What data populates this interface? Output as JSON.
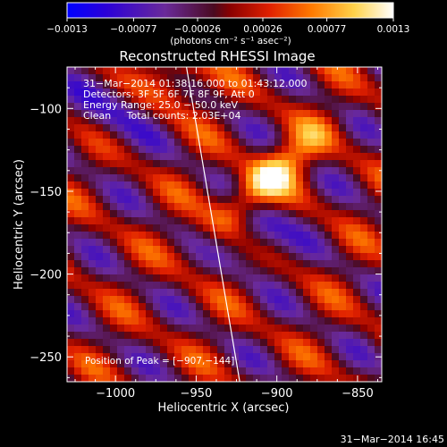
{
  "chart_data": {
    "type": "heatmap",
    "title": "Reconstructed RHESSI Image",
    "xlabel": "Heliocentric X (arcsec)",
    "ylabel": "Heliocentric Y (arcsec)",
    "xlim": [
      -1030,
      -835
    ],
    "ylim": [
      -265,
      -75
    ],
    "x_ticks": [
      -1000,
      -950,
      -900,
      -850
    ],
    "x_tick_labels": [
      "−1000",
      "−950",
      "−900",
      "−850"
    ],
    "y_ticks": [
      -100,
      -150,
      -200,
      -250
    ],
    "y_tick_labels": [
      "−100",
      "−150",
      "−200",
      "−250"
    ],
    "colorbar": {
      "colormap": "rainbow-to-hot",
      "range": [
        -0.0013,
        0.0013
      ],
      "tick_values": [
        -0.0013,
        -0.00077,
        -0.00026,
        0.00026,
        0.00077,
        0.0013
      ],
      "tick_labels": [
        "−0.0013",
        "−0.00077",
        "−0.00026",
        "0.00026",
        "0.00077",
        "0.0013"
      ],
      "units_label": "(photons cm⁻² s⁻¹ asec⁻²)"
    },
    "info_lines": [
      "31−Mar−2014 01:38:16.000 to 01:43:12.000",
      "Detectors: 3F 5F 6F 7F 8F 9F, Att 0",
      "Energy Range: 25.0 − 50.0 keV",
      "Clean     Total counts: 2.03E+04"
    ],
    "peak_label": "Position of Peak = [−907,−144]",
    "peak_position": [
      -907,
      -144
    ],
    "limb_line": [
      [
        -956,
        -75
      ],
      [
        -923,
        -265
      ]
    ],
    "timestamp": "31−Mar−2014 16:45",
    "grid": false
  }
}
